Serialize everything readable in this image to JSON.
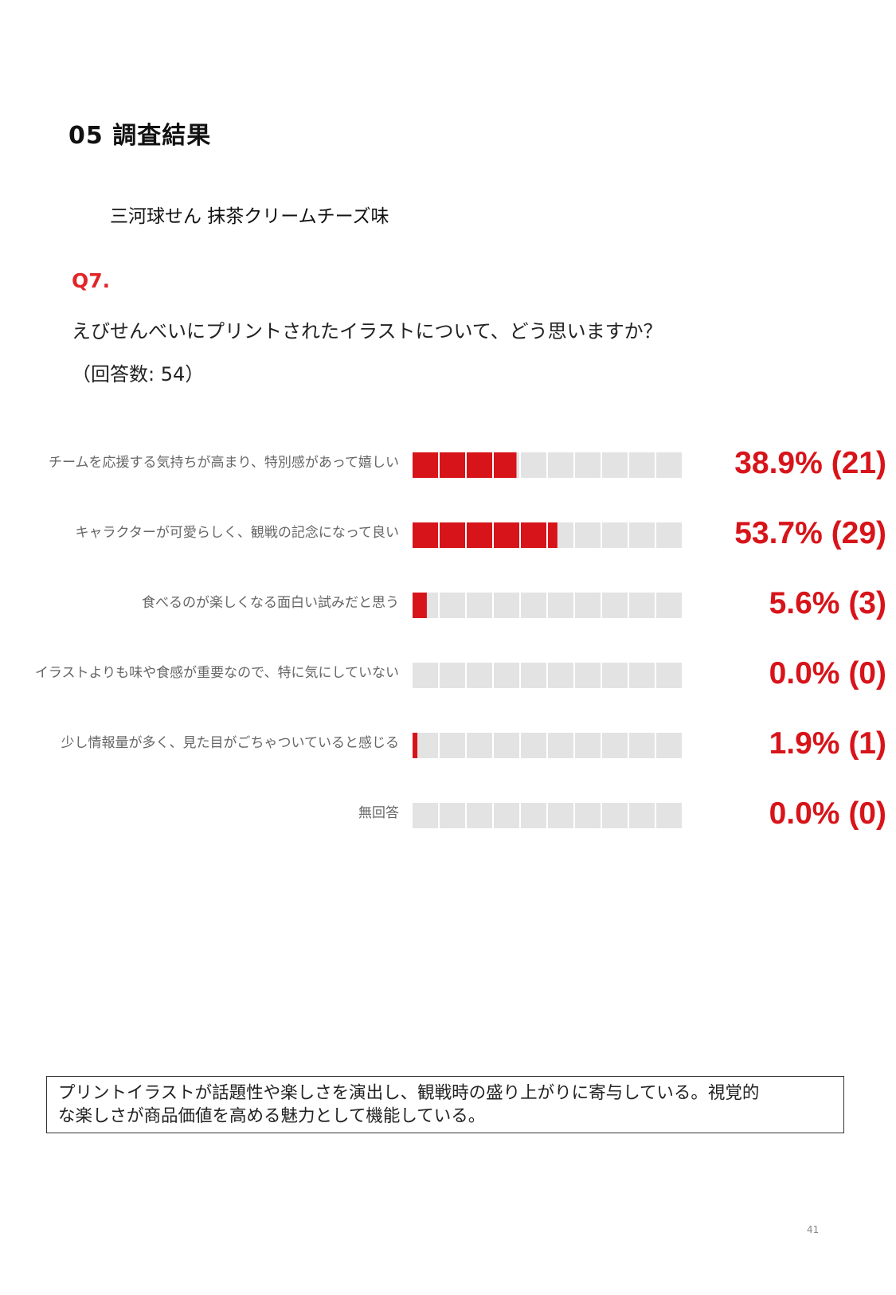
{
  "header": {
    "section_title": "05  調査結果",
    "product_name": "三河球せん  抹茶クリームチーズ味"
  },
  "question": {
    "number": "Q7.",
    "text": "えびせんべいにプリントされたイラストについて、どう思いますか？",
    "count": "（回答数: 54）"
  },
  "colors": {
    "accent": "#d7141a",
    "bar_empty": "#e3e3e3"
  },
  "chart_data": {
    "type": "bar",
    "categories": [
      "チームを応援する気持ちが高まり、特別感があって嬉しい",
      "キャラクターが可愛らしく、観戦の記念になって良い",
      "食べるのが楽しくなる面白い試みだと思う",
      "イラストよりも味や食感が重要なので、特に気にしていない",
      "少し情報量が多く、見た目がごちゃついていると感じる",
      "無回答"
    ],
    "values": [
      38.9,
      53.7,
      5.6,
      0.0,
      1.9,
      0.0
    ],
    "counts": [
      21,
      29,
      3,
      0,
      1,
      0
    ],
    "value_labels": [
      "38.9% (21)",
      "53.7% (29)",
      "5.6% (3)",
      "0.0% (0)",
      "1.9% (1)",
      "0.0% (0)"
    ],
    "segments": 10,
    "ylim": [
      0,
      100
    ]
  },
  "summary": {
    "line1": "プリントイラストが話題性や楽しさを演出し、観戦時の盛り上がりに寄与している。視覚的",
    "line2": "な楽しさが商品価値を高める魅力として機能している。"
  },
  "footer": {
    "page_number": "41"
  }
}
